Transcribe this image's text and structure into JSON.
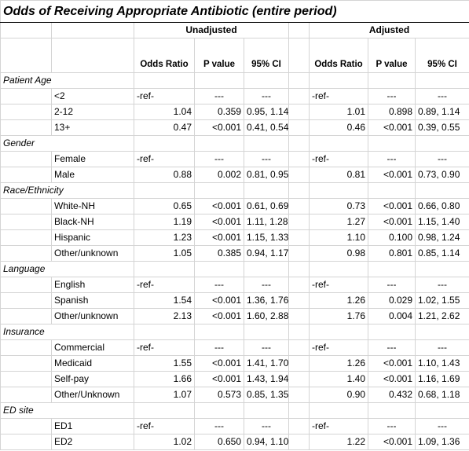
{
  "title": "Odds of Receiving Appropriate Antibiotic (entire period)",
  "headers": {
    "groups": [
      "Unadjusted",
      "Adjusted"
    ],
    "columns": [
      "Odds Ratio",
      "P value",
      "95% CI",
      "Odds Ratio",
      "P value",
      "95% CI"
    ]
  },
  "sections": [
    {
      "name": "Patient Age",
      "rows": [
        {
          "label": "<2",
          "values": [
            "-ref-",
            "---",
            "---",
            "-ref-",
            "---",
            "---"
          ]
        },
        {
          "label": "2-12",
          "values": [
            "1.04",
            "0.359",
            "0.95, 1.14",
            "1.01",
            "0.898",
            "0.89, 1.14"
          ]
        },
        {
          "label": "13+",
          "values": [
            "0.47",
            "<0.001",
            "0.41, 0.54",
            "0.46",
            "<0.001",
            "0.39, 0.55"
          ]
        }
      ]
    },
    {
      "name": "Gender",
      "rows": [
        {
          "label": "Female",
          "values": [
            "-ref-",
            "---",
            "---",
            "-ref-",
            "---",
            "---"
          ]
        },
        {
          "label": "Male",
          "values": [
            "0.88",
            "0.002",
            "0.81, 0.95",
            "0.81",
            "<0.001",
            "0.73, 0.90"
          ]
        }
      ]
    },
    {
      "name": "Race/Ethnicity",
      "rows": [
        {
          "label": "White-NH",
          "values": [
            "0.65",
            "<0.001",
            "0.61, 0.69",
            "0.73",
            "<0.001",
            "0.66, 0.80"
          ]
        },
        {
          "label": "Black-NH",
          "values": [
            "1.19",
            "<0.001",
            "1.11, 1.28",
            "1.27",
            "<0.001",
            "1.15, 1.40"
          ]
        },
        {
          "label": "Hispanic",
          "values": [
            "1.23",
            "<0.001",
            "1.15, 1.33",
            "1.10",
            "0.100",
            "0.98, 1.24"
          ]
        },
        {
          "label": "Other/unknown",
          "values": [
            "1.05",
            "0.385",
            "0.94, 1.17",
            "0.98",
            "0.801",
            "0.85, 1.14"
          ]
        }
      ]
    },
    {
      "name": "Language",
      "rows": [
        {
          "label": "English",
          "values": [
            "-ref-",
            "---",
            "---",
            "-ref-",
            "---",
            "---"
          ]
        },
        {
          "label": "Spanish",
          "values": [
            "1.54",
            "<0.001",
            "1.36, 1.76",
            "1.26",
            "0.029",
            "1.02, 1.55"
          ]
        },
        {
          "label": "Other/unknown",
          "values": [
            "2.13",
            "<0.001",
            "1.60, 2.88",
            "1.76",
            "0.004",
            "1.21, 2.62"
          ]
        }
      ]
    },
    {
      "name": "Insurance",
      "rows": [
        {
          "label": "Commercial",
          "values": [
            "-ref-",
            "---",
            "---",
            "-ref-",
            "---",
            "---"
          ]
        },
        {
          "label": "Medicaid",
          "values": [
            "1.55",
            "<0.001",
            "1.41, 1.70",
            "1.26",
            "<0.001",
            "1.10, 1.43"
          ]
        },
        {
          "label": "Self-pay",
          "values": [
            "1.66",
            "<0.001",
            "1.43, 1.94",
            "1.40",
            "<0.001",
            "1.16, 1.69"
          ]
        },
        {
          "label": "Other/Unknown",
          "values": [
            "1.07",
            "0.573",
            "0.85, 1.35",
            "0.90",
            "0.432",
            "0.68, 1.18"
          ]
        }
      ]
    },
    {
      "name": "ED site",
      "rows": [
        {
          "label": "ED1",
          "values": [
            "-ref-",
            "---",
            "---",
            "-ref-",
            "---",
            "---"
          ]
        },
        {
          "label": "ED2",
          "values": [
            "1.02",
            "0.650",
            "0.94, 1.10",
            "1.22",
            "<0.001",
            "1.09, 1.36"
          ]
        }
      ]
    }
  ]
}
